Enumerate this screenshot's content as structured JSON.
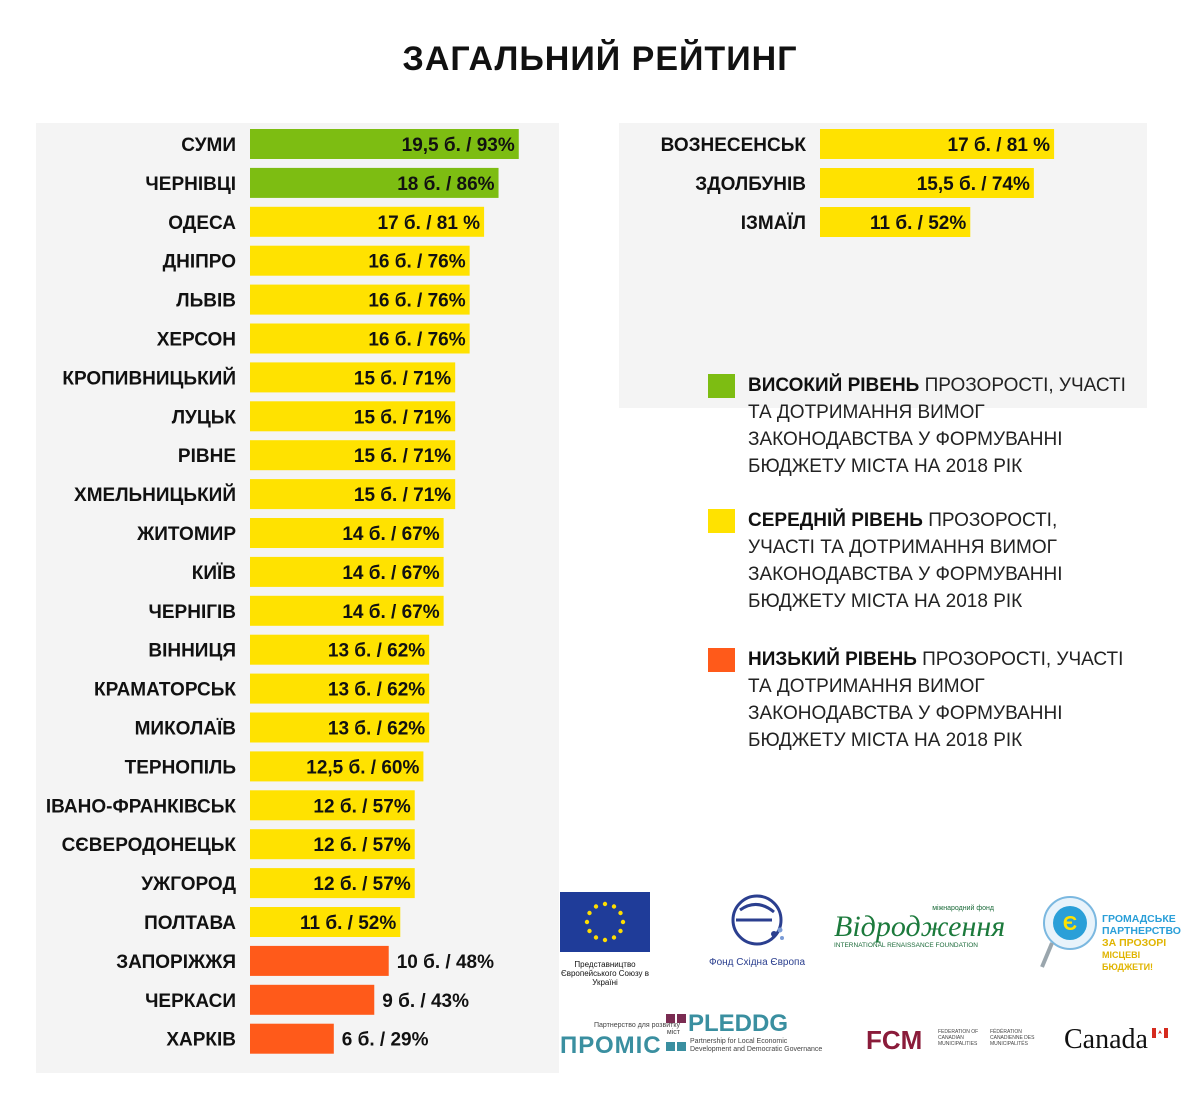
{
  "title": "ЗАГАЛЬНИЙ РЕЙТИНГ",
  "colors": {
    "high": "#7dbd12",
    "medium": "#ffe200",
    "low": "#ff5a1a",
    "panel": "#f4f4f4"
  },
  "chart_data": [
    {
      "type": "bar",
      "orientation": "horizontal",
      "unit_note": "б. / %",
      "categories": [
        "СУМИ",
        "ЧЕРНІВЦІ",
        "ОДЕСА",
        "ДНІПРО",
        "ЛЬВІВ",
        "ХЕРСОН",
        "КРОПИВНИЦЬКИЙ",
        "ЛУЦЬК",
        "РІВНЕ",
        "ХМЕЛЬНИЦЬКИЙ",
        "ЖИТОМИР",
        "КИЇВ",
        "ЧЕРНІГІВ",
        "ВІННИЦЯ",
        "КРАМАТОРСЬК",
        "МИКОЛАЇВ",
        "ТЕРНОПІЛЬ",
        "ІВАНО-ФРАНКІВСЬК",
        "СЄВЕРОДОНЕЦЬК",
        "УЖГОРОД",
        "ПОЛТАВА",
        "ЗАПОРІЖЖЯ",
        "ЧЕРКАСИ",
        "ХАРКІВ"
      ],
      "values": [
        93,
        86,
        81,
        76,
        76,
        76,
        71,
        71,
        71,
        71,
        67,
        67,
        67,
        62,
        62,
        62,
        60,
        57,
        57,
        57,
        52,
        48,
        43,
        29
      ],
      "points": [
        19.5,
        18,
        17,
        16,
        16,
        16,
        15,
        15,
        15,
        15,
        14,
        14,
        14,
        13,
        13,
        13,
        12.5,
        12,
        12,
        12,
        11,
        10,
        9,
        6
      ],
      "levels": [
        "high",
        "high",
        "medium",
        "medium",
        "medium",
        "medium",
        "medium",
        "medium",
        "medium",
        "medium",
        "medium",
        "medium",
        "medium",
        "medium",
        "medium",
        "medium",
        "medium",
        "medium",
        "medium",
        "medium",
        "medium",
        "low",
        "low",
        "low"
      ],
      "labels": [
        "19,5 б. / 93%",
        "18 б. / 86%",
        "17 б. / 81 %",
        "16 б. / 76%",
        "16 б. / 76%",
        "16 б. / 76%",
        "15 б. / 71%",
        "15 б. / 71%",
        "15 б. / 71%",
        "15 б. / 71%",
        "14 б. / 67%",
        "14 б. / 67%",
        "14 б. / 67%",
        "13 б. / 62%",
        "13 б. / 62%",
        "13 б. / 62%",
        "12,5 б. / 60%",
        "12 б. / 57%",
        "12 б. / 57%",
        "12 б. / 57%",
        "11 б. / 52%",
        "10 б. / 48%",
        "9 б. / 43%",
        "6 б. / 29%"
      ],
      "xlim": [
        0,
        100
      ]
    },
    {
      "type": "bar",
      "orientation": "horizontal",
      "categories": [
        "ВОЗНЕСЕНСЬК",
        "ЗДОЛБУНІВ",
        "ІЗМАЇЛ"
      ],
      "values": [
        81,
        74,
        52
      ],
      "points": [
        17,
        15.5,
        11
      ],
      "levels": [
        "medium",
        "medium",
        "medium"
      ],
      "labels": [
        "17 б. / 81 %",
        "15,5 б. / 74%",
        "11 б. / 52%"
      ],
      "xlim": [
        0,
        100
      ]
    }
  ],
  "legend": [
    {
      "level": "high",
      "bold": "ВИСОКИЙ РІВЕНЬ",
      "text": " ПРОЗОРОСТІ, УЧАСТІ ТА ДОТРИМАННЯ ВИМОГ ЗАКОНОДАВСТВА У ФОРМУВАННІ БЮДЖЕТУ МІСТА НА 2018 РІК"
    },
    {
      "level": "medium",
      "bold": "СЕРЕДНІЙ РІВЕНЬ",
      "text": " ПРОЗОРОСТІ, УЧАСТІ ТА ДОТРИМАННЯ ВИМОГ ЗАКОНОДАВСТВА У ФОРМУВАННІ БЮДЖЕТУ МІСТА НА 2018 РІК"
    },
    {
      "level": "low",
      "bold": "НИЗЬКИЙ РІВЕНЬ",
      "text": " ПРОЗОРОСТІ, УЧАСТІ ТА ДОТРИМАННЯ ВИМОГ ЗАКОНОДАВСТВА У ФОРМУВАННІ БЮДЖЕТУ МІСТА НА 2018 РІК"
    }
  ],
  "logos": {
    "eu_caption": "Представництво Європейського Союзу в Україні",
    "fund_caption": "Фонд Східна Європа",
    "irf_small": "міжнародний фонд",
    "irf_main": "Відродження",
    "irf_sub": "INTERNATIONAL RENAISSANCE FOUNDATION",
    "gp_line1": "ГРОМАДСЬКЕ",
    "gp_line2": "ПАРТНЕРСТВО",
    "gp_line3": "ЗА ПРОЗОРІ",
    "gp_line4": "МІСЦЕВІ БЮДЖЕТИ!",
    "promis_small": "Партнерство для розвитку міст",
    "promis": "ПРОМІС",
    "pleddg": "PLEDDG",
    "pleddg_sub": "Partnership for Local Economic Development and Democratic Governance",
    "fcm": "FCM",
    "fcm_en": "FEDERATION OF CANADIAN MUNICIPALITIES",
    "fcm_fr": "FÉDÉRATION CANADIENNE DES MUNICIPALITÉS",
    "canada": "Canada"
  }
}
